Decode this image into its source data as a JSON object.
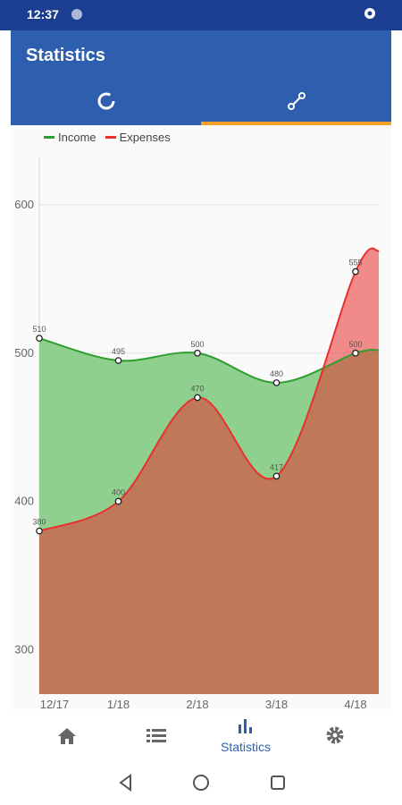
{
  "status_bar": {
    "time": "12:37"
  },
  "app_bar": {
    "title": "Statistics",
    "tabs": [
      {
        "icon": "donut-chart-icon",
        "selected": false
      },
      {
        "icon": "line-chart-icon",
        "selected": true
      }
    ]
  },
  "colors": {
    "status_bar": "#1b3e91",
    "app_bar": "#2d5fae",
    "tab_indicator": "#f7a02a",
    "income": "#2e9e2e",
    "expenses": "#e8302c"
  },
  "chart_data": {
    "type": "area",
    "categories": [
      "12/17",
      "1/18",
      "2/18",
      "3/18",
      "4/18"
    ],
    "series": [
      {
        "name": "Income",
        "values": [
          510,
          495,
          500,
          480,
          500
        ],
        "labels": [
          "510",
          "495",
          "500",
          "480",
          "500"
        ],
        "color": "#2e9e2e"
      },
      {
        "name": "Expenses",
        "values": [
          380,
          400,
          470,
          417,
          555
        ],
        "labels": [
          "380",
          "400",
          "470",
          "417",
          "555"
        ],
        "color": "#e8302c"
      }
    ],
    "y_ticks": [
      "300",
      "400",
      "500",
      "600"
    ],
    "ylim": [
      270,
      632
    ],
    "grid": true,
    "legend": "top-left"
  },
  "bottom_nav": {
    "items": [
      {
        "icon": "home-icon"
      },
      {
        "icon": "list-icon"
      },
      {
        "icon": "bar-chart-icon",
        "label": "Statistics",
        "active": true
      },
      {
        "icon": "gear-icon"
      }
    ]
  },
  "system_nav": [
    "back-icon",
    "home-circle-icon",
    "recents-icon"
  ]
}
